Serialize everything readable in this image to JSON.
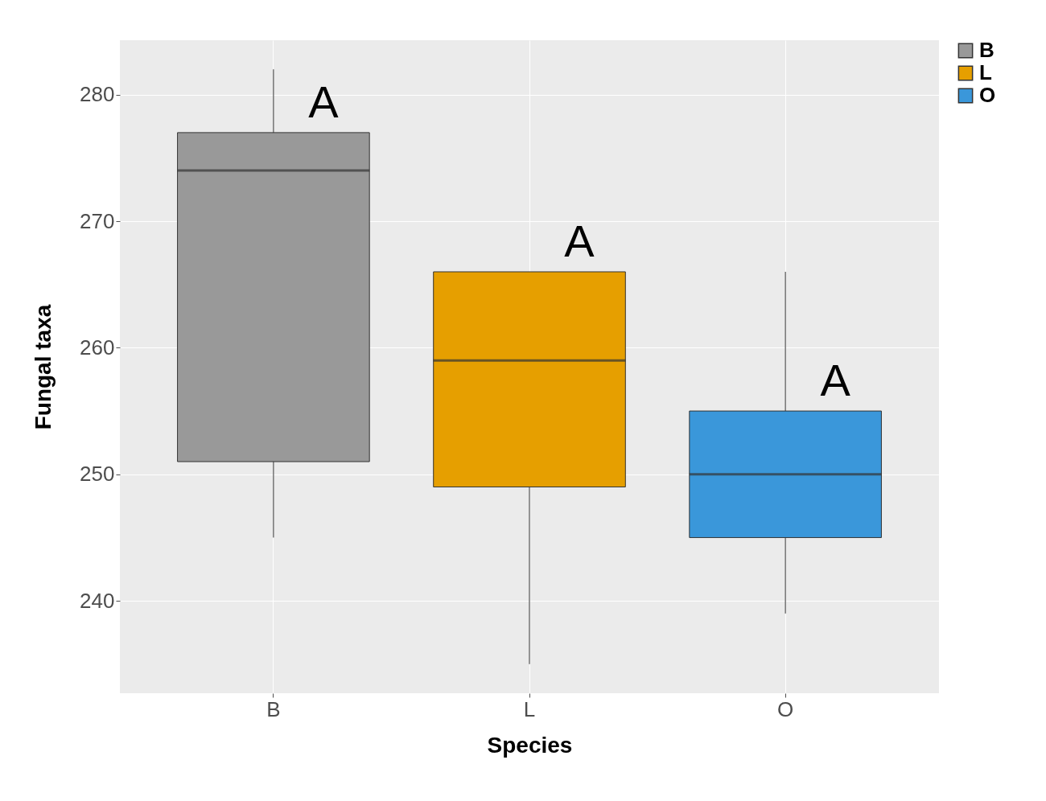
{
  "chart_data": {
    "type": "box",
    "xlabel": "Species",
    "ylabel": "Fungal  taxa",
    "categories": [
      "B",
      "L",
      "O"
    ],
    "series": [
      {
        "name": "B",
        "color": "#999999",
        "boxes": [
          {
            "low": 245,
            "q1": 251,
            "median": 274,
            "q3": 277,
            "high": 282
          },
          null,
          null
        ]
      },
      {
        "name": "L",
        "color": "#e69f00",
        "boxes": [
          null,
          {
            "low": 235,
            "q1": 249,
            "median": 259,
            "q3": 266,
            "high": 266
          },
          null
        ]
      },
      {
        "name": "O",
        "color": "#3a97da",
        "boxes": [
          null,
          null,
          {
            "low": 239,
            "q1": 245,
            "median": 250,
            "q3": 255,
            "high": 266
          }
        ]
      }
    ],
    "ylim": [
      232.7,
      284.3
    ],
    "yticks": [
      240,
      250,
      260,
      270,
      280
    ],
    "grid": true,
    "legend": "right",
    "annotations": [
      "A",
      "A",
      "A"
    ]
  }
}
